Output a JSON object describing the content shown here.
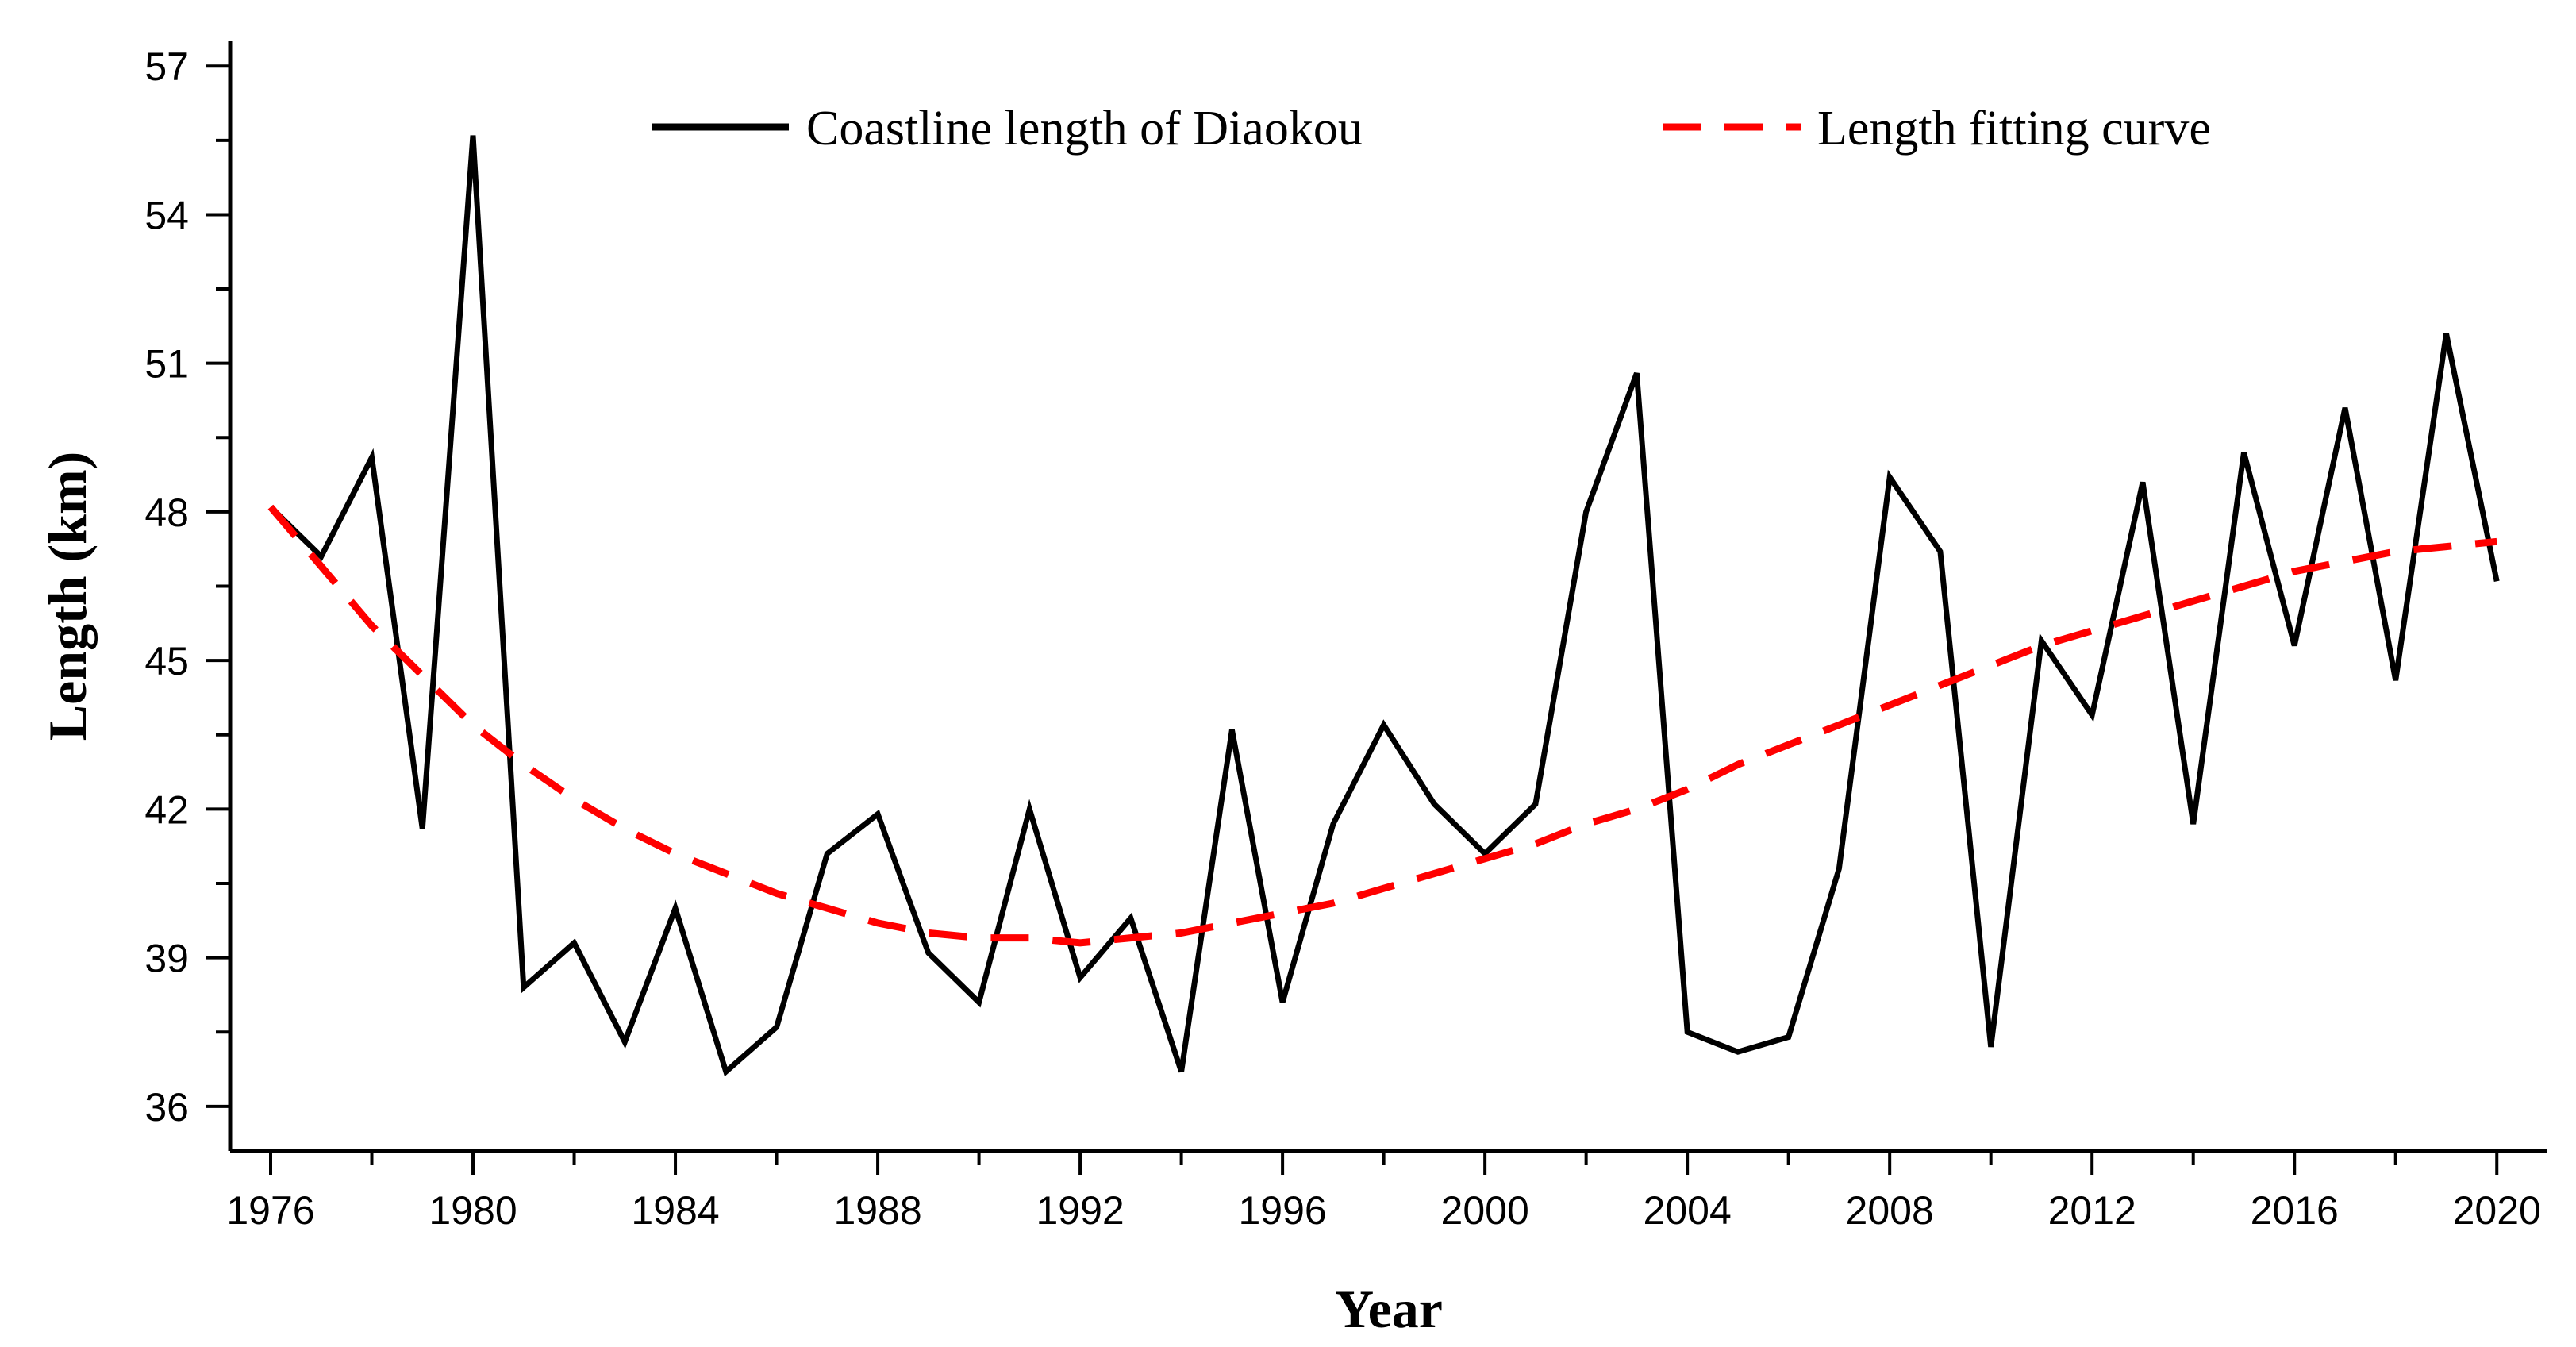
{
  "chart_data": {
    "type": "line",
    "title": "",
    "xlabel": "Year",
    "ylabel": "Length (km)",
    "xlim": [
      1975.2,
      2021
    ],
    "ylim": [
      35.1,
      57.5
    ],
    "x_ticks": [
      1976,
      1980,
      1984,
      1988,
      1992,
      1996,
      2000,
      2004,
      2008,
      2012,
      2016,
      2020
    ],
    "y_ticks": [
      36,
      39,
      42,
      45,
      48,
      51,
      54,
      57
    ],
    "legend_position": "top",
    "colors": {
      "length": "#000000",
      "fit": "#ff0000"
    },
    "x": [
      1976,
      1977,
      1978,
      1979,
      1980,
      1981,
      1982,
      1983,
      1984,
      1985,
      1986,
      1987,
      1988,
      1989,
      1990,
      1991,
      1992,
      1993,
      1994,
      1995,
      1996,
      1997,
      1998,
      1999,
      2000,
      2001,
      2002,
      2003,
      2004,
      2005,
      2006,
      2007,
      2008,
      2009,
      2010,
      2011,
      2012,
      2013,
      2014,
      2015,
      2016,
      2017,
      2018,
      2019,
      2020
    ],
    "series": [
      {
        "name": "Coastline length of Diaokou",
        "style": "solid",
        "values": [
          48.1,
          47.1,
          49.1,
          41.6,
          55.6,
          38.4,
          39.3,
          37.3,
          40.0,
          36.7,
          37.6,
          41.1,
          41.9,
          39.1,
          38.1,
          42.0,
          38.6,
          39.8,
          36.7,
          43.6,
          38.1,
          41.7,
          43.7,
          42.1,
          41.1,
          42.1,
          48.0,
          50.8,
          37.5,
          37.1,
          37.4,
          40.8,
          48.7,
          47.2,
          37.2,
          45.4,
          43.9,
          48.6,
          41.7,
          49.2,
          45.3,
          50.1,
          44.6,
          51.6,
          46.6
        ]
      },
      {
        "name": "Length fitting curve",
        "style": "dashed",
        "values": [
          48.1,
          46.9,
          45.7,
          44.7,
          43.7,
          42.9,
          42.2,
          41.6,
          41.1,
          40.7,
          40.3,
          40.0,
          39.7,
          39.5,
          39.4,
          39.4,
          39.3,
          39.4,
          39.5,
          39.7,
          39.9,
          40.1,
          40.4,
          40.7,
          41.0,
          41.3,
          41.7,
          42.0,
          42.4,
          42.9,
          43.3,
          43.7,
          44.1,
          44.5,
          44.9,
          45.3,
          45.6,
          45.9,
          46.2,
          46.5,
          46.8,
          47.0,
          47.2,
          47.3,
          47.4
        ]
      }
    ]
  }
}
